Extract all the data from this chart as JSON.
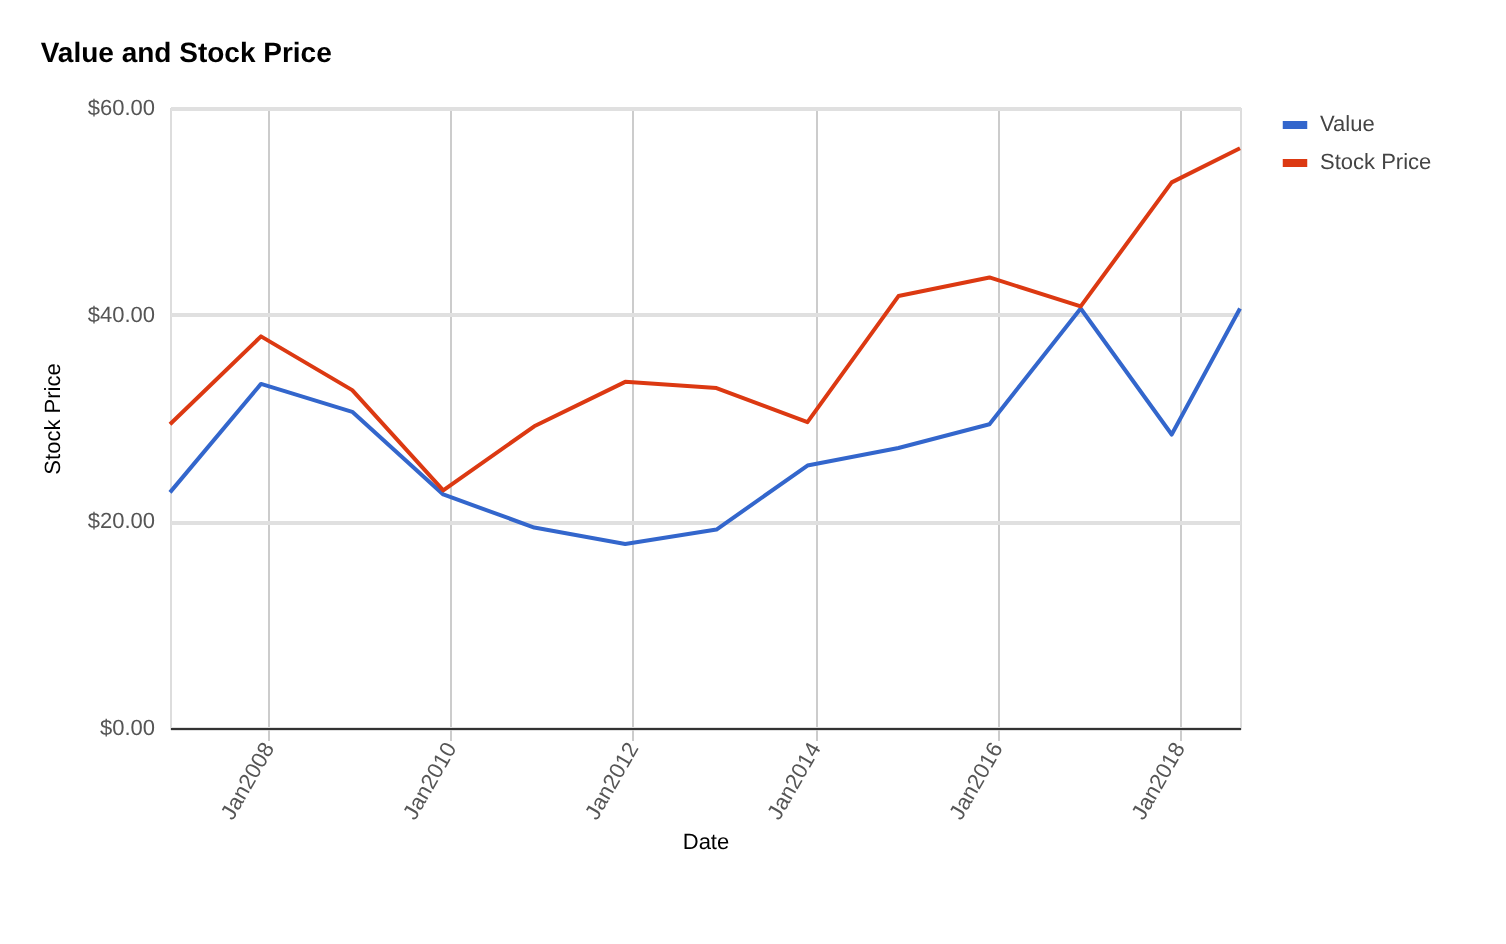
{
  "chart_data": {
    "type": "line",
    "title": "Value and Stock Price",
    "xlabel": "Date",
    "ylabel": "Stock Price",
    "x": [
      "2006-12",
      "2007-12",
      "2008-12",
      "2009-12",
      "2010-12",
      "2011-12",
      "2012-12",
      "2013-12",
      "2014-12",
      "2015-12",
      "2016-12",
      "2017-12",
      "2018-09"
    ],
    "series": [
      {
        "name": "Value",
        "color": "#3366cc",
        "values": [
          22.8,
          33.3,
          30.6,
          22.6,
          19.4,
          17.8,
          19.2,
          25.4,
          27.1,
          29.4,
          40.6,
          28.4,
          40.6
        ]
      },
      {
        "name": "Stock Price",
        "color": "#dc3912",
        "values": [
          29.4,
          37.9,
          32.7,
          23.0,
          29.2,
          33.5,
          32.9,
          29.6,
          41.8,
          43.6,
          40.8,
          52.8,
          56.1
        ]
      }
    ],
    "xlim": [
      "2006-12",
      "2018-09"
    ],
    "xticks": [
      {
        "value": "2008-01",
        "label": "Jan2008"
      },
      {
        "value": "2010-01",
        "label": "Jan2010"
      },
      {
        "value": "2012-01",
        "label": "Jan2012"
      },
      {
        "value": "2014-01",
        "label": "Jan2014"
      },
      {
        "value": "2016-01",
        "label": "Jan2016"
      },
      {
        "value": "2018-01",
        "label": "Jan2018"
      }
    ],
    "ylim": [
      0,
      60
    ],
    "yticks": [
      {
        "value": 0,
        "label": "$0.00"
      },
      {
        "value": 20,
        "label": "$20.00"
      },
      {
        "value": 40,
        "label": "$40.00"
      },
      {
        "value": 60,
        "label": "$60.00"
      }
    ],
    "grid": true,
    "legend": "top right",
    "marker": "none",
    "line_style": "solid"
  }
}
